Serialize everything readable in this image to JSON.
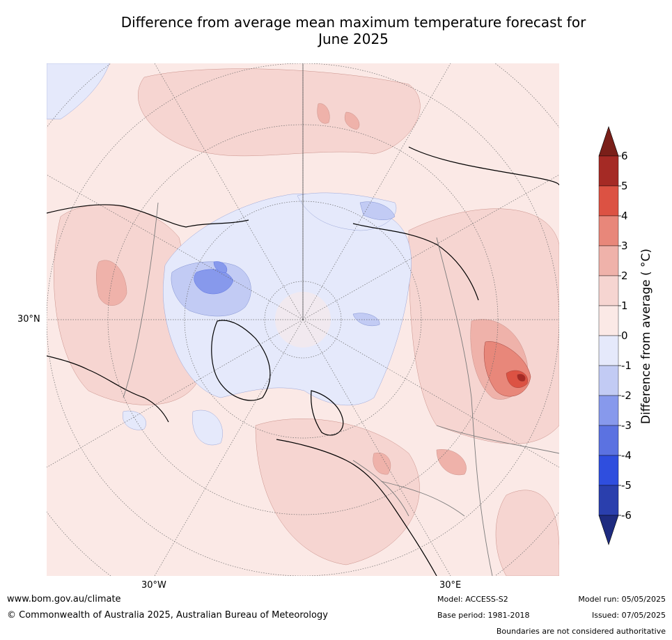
{
  "title_line1": "Difference from average mean maximum temperature forecast for",
  "title_line2": "June 2025",
  "map": {
    "projection": "north polar stereographic",
    "labels": {
      "lat_30n": "30°N",
      "lon_30w": "30°W",
      "lon_30e": "30°E"
    },
    "background_color": "#fbe9e6"
  },
  "colorbar": {
    "label": "Difference from average ( °C)",
    "ticks": [
      "6",
      "5",
      "4",
      "3",
      "2",
      "1",
      "0",
      "-1",
      "-2",
      "-3",
      "-4",
      "-5",
      "-6"
    ],
    "colors_top_to_bottom": [
      "#a52a25",
      "#dc5243",
      "#e8877a",
      "#efb2aa",
      "#f6d5d1",
      "#fbe9e6",
      "#e5e9fb",
      "#c2cbf4",
      "#8799ec",
      "#5b72e1",
      "#2f4ede",
      "#2a3fad"
    ],
    "over_color": "#7a1f19",
    "under_color": "#1e2b80"
  },
  "footer": {
    "website": "www.bom.gov.au/climate",
    "copyright": "© Commonwealth of Australia 2025, Australian Bureau of Meteorology",
    "model": "Model: ACCESS-S2",
    "base_period": "Base period: 1981-2018",
    "model_run": "Model run: 05/05/2025",
    "issued": "Issued: 07/05/2025",
    "disclaimer": "Boundaries are not considered authoritative"
  }
}
